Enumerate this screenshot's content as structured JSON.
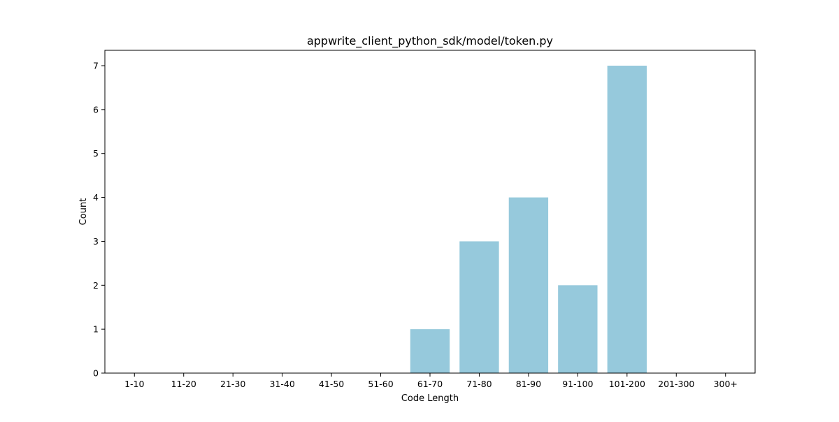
{
  "chart_data": {
    "type": "bar",
    "title": "appwrite_client_python_sdk/model/token.py",
    "xlabel": "Code Length",
    "ylabel": "Count",
    "categories": [
      "1-10",
      "11-20",
      "21-30",
      "31-40",
      "41-50",
      "51-60",
      "61-70",
      "71-80",
      "81-90",
      "91-100",
      "101-200",
      "201-300",
      "300+"
    ],
    "values": [
      0,
      0,
      0,
      0,
      0,
      0,
      1,
      3,
      4,
      2,
      7,
      0,
      0
    ],
    "ylim": [
      0,
      7.35
    ],
    "yticks": [
      "0",
      "1",
      "2",
      "3",
      "4",
      "5",
      "6",
      "7"
    ],
    "grid": false,
    "legend": "none",
    "bar_color": "#96c9dc",
    "axis_color": "#000000"
  }
}
